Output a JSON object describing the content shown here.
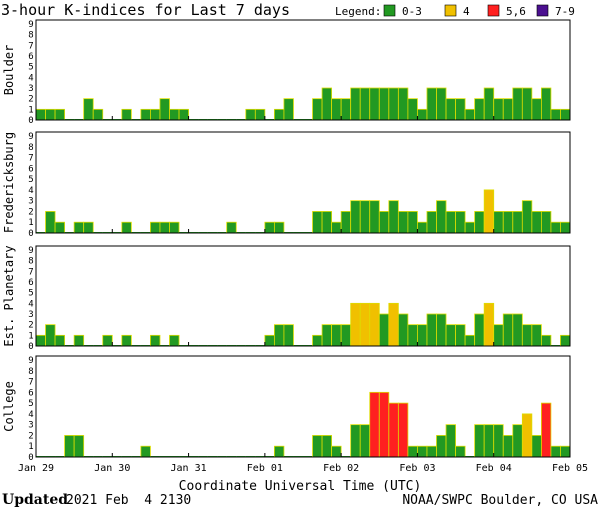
{
  "header": {
    "title": "3-hour K-indices for Last 7 days",
    "legend_label": "Legend:",
    "legend": [
      {
        "label": "0-3",
        "color": "#229922"
      },
      {
        "label": "4",
        "color": "#f0c000"
      },
      {
        "label": "5,6",
        "color": "#ff2020"
      },
      {
        "label": "7-9",
        "color": "#4b1090"
      }
    ]
  },
  "footer": {
    "updated_label": "Updated",
    "updated_value": "2021 Feb  4 2130",
    "credit": "NOAA/SWPC Boulder, CO USA"
  },
  "chart_data": [
    {
      "type": "bar",
      "title": "Boulder",
      "ylim": [
        0,
        9
      ],
      "yticks": [
        "0",
        "1",
        "2",
        "3",
        "4",
        "5",
        "6",
        "7",
        "8",
        "9"
      ],
      "values": [
        1,
        1,
        1,
        0,
        0,
        2,
        1,
        0,
        0,
        1,
        0,
        1,
        1,
        2,
        1,
        1,
        0,
        0,
        0,
        0,
        0,
        0,
        1,
        1,
        0,
        1,
        2,
        0,
        0,
        2,
        3,
        2,
        2,
        3,
        3,
        3,
        3,
        3,
        3,
        2,
        1,
        3,
        3,
        2,
        2,
        1,
        2,
        3,
        2,
        2,
        3,
        3,
        2,
        3,
        1,
        1,
        0
      ]
    },
    {
      "type": "bar",
      "title": "Fredericksburg",
      "ylim": [
        0,
        9
      ],
      "yticks": [
        "0",
        "1",
        "2",
        "3",
        "4",
        "5",
        "6",
        "7",
        "8",
        "9"
      ],
      "values": [
        0,
        2,
        1,
        0,
        1,
        1,
        0,
        0,
        0,
        1,
        0,
        0,
        1,
        1,
        1,
        0,
        0,
        0,
        0,
        0,
        1,
        0,
        0,
        0,
        1,
        1,
        0,
        0,
        0,
        2,
        2,
        1,
        2,
        3,
        3,
        3,
        2,
        3,
        2,
        2,
        1,
        2,
        3,
        2,
        2,
        1,
        2,
        4,
        2,
        2,
        2,
        3,
        2,
        2,
        1,
        1,
        0
      ]
    },
    {
      "type": "bar",
      "title": "Est. Planetary",
      "ylim": [
        0,
        9
      ],
      "yticks": [
        "0",
        "1",
        "2",
        "3",
        "4",
        "5",
        "6",
        "7",
        "8",
        "9"
      ],
      "values": [
        1,
        2,
        1,
        0,
        1,
        0,
        0,
        1,
        0,
        1,
        0,
        0,
        1,
        0,
        1,
        0,
        0,
        0,
        0,
        0,
        0,
        0,
        0,
        0,
        1,
        2,
        2,
        0,
        0,
        1,
        2,
        2,
        2,
        4,
        4,
        4,
        3,
        4,
        3,
        2,
        2,
        3,
        3,
        2,
        2,
        1,
        3,
        4,
        2,
        3,
        3,
        2,
        2,
        1,
        0,
        1,
        0
      ]
    },
    {
      "type": "bar",
      "title": "College",
      "ylim": [
        0,
        9
      ],
      "yticks": [
        "0",
        "1",
        "2",
        "3",
        "4",
        "5",
        "6",
        "7",
        "8",
        "9"
      ],
      "values": [
        0,
        0,
        0,
        2,
        2,
        0,
        0,
        0,
        0,
        0,
        0,
        1,
        0,
        0,
        0,
        0,
        0,
        0,
        0,
        0,
        0,
        0,
        0,
        0,
        0,
        1,
        0,
        0,
        0,
        2,
        2,
        1,
        0,
        3,
        3,
        6,
        6,
        5,
        5,
        1,
        1,
        1,
        2,
        3,
        1,
        0,
        3,
        3,
        3,
        2,
        3,
        4,
        2,
        5,
        1,
        1,
        0
      ]
    }
  ],
  "color_scale": [
    {
      "range": "0-3",
      "min": 0,
      "max": 3,
      "color": "#229922"
    },
    {
      "range": "4",
      "min": 4,
      "max": 4,
      "color": "#f0c000"
    },
    {
      "range": "5,6",
      "min": 5,
      "max": 6,
      "color": "#ff2020"
    },
    {
      "range": "7-9",
      "min": 7,
      "max": 9,
      "color": "#4b1090"
    }
  ],
  "x_axis": {
    "label": "Coordinate Universal Time (UTC)",
    "ticks": [
      "Jan 29",
      "Jan 30",
      "Jan 31",
      "Feb 01",
      "Feb 02",
      "Feb 03",
      "Feb 04",
      "Feb 05"
    ]
  }
}
